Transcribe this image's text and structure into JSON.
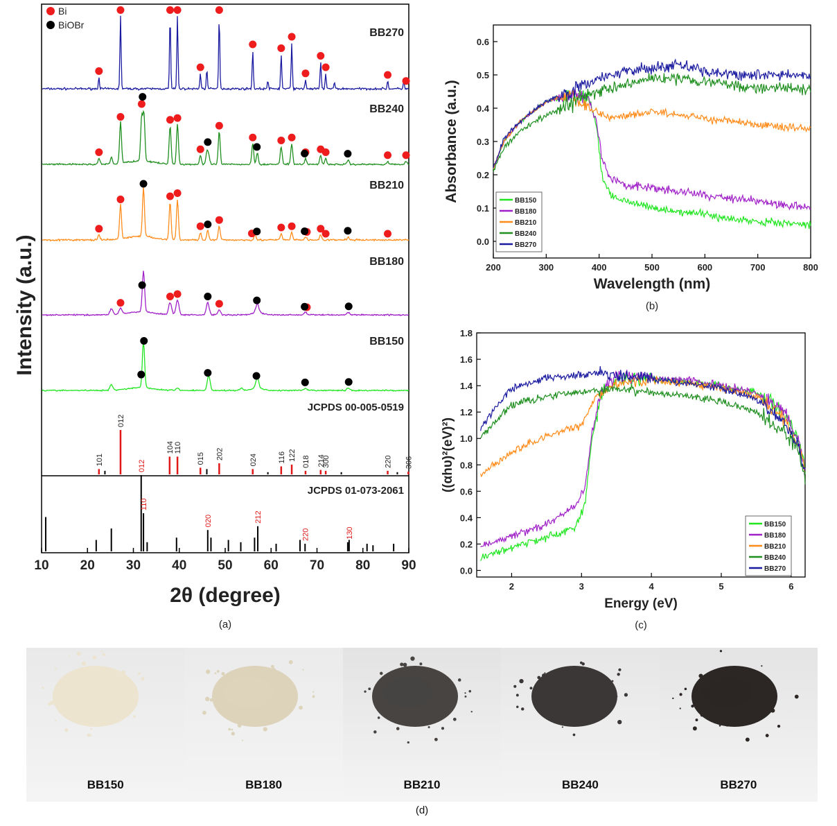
{
  "panel_letters": {
    "a": "(a)",
    "b": "(b)",
    "c": "(c)",
    "d": "(d)"
  },
  "colors": {
    "BB150": "#1fe61f",
    "BB180": "#a020c8",
    "BB210": "#ff8c1a",
    "BB240": "#1f8f1f",
    "BB270": "#1a1aa0",
    "Bi_marker": "#ee1c1c",
    "BiOBr_marker": "#000000",
    "ref_Bi": "#e01818",
    "ref_BiOBr": "#000000"
  },
  "chart_data": [
    {
      "id": "a",
      "type": "line",
      "xlabel": "2θ (degree)",
      "ylabel": "Intensity (a.u.)",
      "xlim": [
        10,
        90
      ],
      "xticks": [
        10,
        20,
        30,
        40,
        50,
        60,
        70,
        80,
        90
      ],
      "legend": [
        {
          "name": "Bi",
          "color": "#ee1c1c"
        },
        {
          "name": "BiOBr",
          "color": "#000000"
        }
      ],
      "legend_position": "top-left",
      "series": [
        {
          "name": "BB270",
          "peaks": [
            [
              22.5,
              0.15
            ],
            [
              27.2,
              0.95
            ],
            [
              38.0,
              0.95
            ],
            [
              39.6,
              0.95
            ],
            [
              44.6,
              0.2
            ],
            [
              46.0,
              0.25
            ],
            [
              48.7,
              0.95
            ],
            [
              56.0,
              0.5
            ],
            [
              59.3,
              0.1
            ],
            [
              62.2,
              0.45
            ],
            [
              64.5,
              0.6
            ],
            [
              67.5,
              0.12
            ],
            [
              70.8,
              0.35
            ],
            [
              71.9,
              0.2
            ],
            [
              73.8,
              0.08
            ],
            [
              85.4,
              0.1
            ],
            [
              88.9,
              0.1
            ]
          ],
          "Bi_markers": [
            22.5,
            27.2,
            38.0,
            39.6,
            44.6,
            48.7,
            56.0,
            62.2,
            64.5,
            67.5,
            70.8,
            71.9,
            85.4,
            89.4
          ],
          "BiOBr_markers": []
        },
        {
          "name": "BB240",
          "peaks": [
            [
              22.5,
              0.1
            ],
            [
              25.2,
              0.12
            ],
            [
              27.2,
              0.7
            ],
            [
              31.8,
              0.75
            ],
            [
              32.3,
              0.8
            ],
            [
              38.0,
              0.65
            ],
            [
              39.6,
              0.68
            ],
            [
              44.6,
              0.15
            ],
            [
              46.0,
              0.2
            ],
            [
              46.4,
              0.15
            ],
            [
              48.7,
              0.55
            ],
            [
              56.0,
              0.35
            ],
            [
              57.0,
              0.2
            ],
            [
              62.2,
              0.3
            ],
            [
              64.5,
              0.35
            ],
            [
              67.5,
              0.1
            ],
            [
              70.8,
              0.15
            ],
            [
              71.9,
              0.1
            ],
            [
              76.8,
              0.08
            ],
            [
              85.4,
              0.05
            ],
            [
              89.4,
              0.05
            ]
          ],
          "Bi_markers": [
            22.5,
            27.2,
            31.8,
            38.0,
            39.6,
            44.6,
            48.7,
            56.0,
            62.2,
            64.5,
            67.5,
            70.8,
            71.9,
            85.4,
            89.4
          ],
          "BiOBr_markers": [
            32.0,
            46.2,
            56.9,
            67.3,
            76.7
          ]
        },
        {
          "name": "BB210",
          "peaks": [
            [
              22.5,
              0.08
            ],
            [
              27.2,
              0.55
            ],
            [
              32.2,
              0.8
            ],
            [
              38.0,
              0.6
            ],
            [
              39.6,
              0.65
            ],
            [
              44.6,
              0.12
            ],
            [
              46.2,
              0.15
            ],
            [
              48.7,
              0.22
            ],
            [
              56.5,
              0.1
            ],
            [
              62.2,
              0.1
            ],
            [
              64.5,
              0.12
            ],
            [
              67.5,
              0.05
            ],
            [
              70.8,
              0.08
            ],
            [
              76.8,
              0.05
            ]
          ],
          "Bi_markers": [
            22.5,
            27.2,
            38.0,
            39.6,
            44.6,
            48.7,
            55.8,
            62.2,
            64.5,
            67.8,
            70.8,
            71.9,
            85.4
          ],
          "BiOBr_markers": [
            32.2,
            46.2,
            56.9,
            67.3,
            76.7
          ]
        },
        {
          "name": "BB180",
          "peaks": [
            [
              25.2,
              0.12
            ],
            [
              27.2,
              0.12
            ],
            [
              32.2,
              0.85
            ],
            [
              38.0,
              0.25
            ],
            [
              39.6,
              0.3
            ],
            [
              46.2,
              0.25
            ],
            [
              48.7,
              0.1
            ],
            [
              57.0,
              0.18
            ],
            [
              67.5,
              0.05
            ],
            [
              76.8,
              0.05
            ]
          ],
          "Bi_markers": [
            27.2,
            38.0,
            39.6,
            48.7,
            67.8
          ],
          "BiOBr_markers": [
            31.9,
            46.2,
            56.9,
            67.3,
            76.9
          ]
        },
        {
          "name": "BB150",
          "peaks": [
            [
              25.2,
              0.12
            ],
            [
              32.2,
              0.95
            ],
            [
              39.6,
              0.05
            ],
            [
              46.4,
              0.3
            ],
            [
              53.5,
              0.05
            ],
            [
              57.0,
              0.22
            ],
            [
              67.5,
              0.04
            ],
            [
              76.8,
              0.05
            ]
          ],
          "Bi_markers": [],
          "BiOBr_markers": [
            31.7,
            32.3,
            46.2,
            56.8,
            67.4,
            76.9
          ]
        }
      ],
      "references": [
        {
          "name": "JCPDS 00-005-0519",
          "color": "#e01818",
          "minor_color": "#000000",
          "sticks": [
            [
              22.5,
              0.12
            ],
            [
              23.8,
              0.08
            ],
            [
              27.2,
              1.0
            ],
            [
              37.9,
              0.4
            ],
            [
              39.6,
              0.4
            ],
            [
              44.6,
              0.15
            ],
            [
              46.0,
              0.12
            ],
            [
              48.7,
              0.25
            ],
            [
              56.0,
              0.12
            ],
            [
              59.3,
              0.05
            ],
            [
              62.2,
              0.18
            ],
            [
              64.5,
              0.22
            ],
            [
              67.5,
              0.08
            ],
            [
              70.8,
              0.1
            ],
            [
              71.9,
              0.08
            ],
            [
              75.3,
              0.05
            ],
            [
              85.4,
              0.08
            ],
            [
              87.5,
              0.05
            ],
            [
              89.9,
              0.06
            ]
          ],
          "labels": [
            [
              "101",
              22.5
            ],
            [
              "012",
              27.2
            ],
            [
              "104",
              37.9
            ],
            [
              "110",
              39.6
            ],
            [
              "015",
              44.6
            ],
            [
              "202",
              48.7
            ],
            [
              "024",
              56.0
            ],
            [
              "116",
              62.2
            ],
            [
              "122",
              64.5
            ],
            [
              "018",
              67.5
            ],
            [
              "214",
              70.8
            ],
            [
              "300",
              71.9
            ],
            [
              "220",
              85.4
            ],
            [
              "306",
              89.9
            ]
          ]
        },
        {
          "name": "JCPDS 01-073-2061",
          "color": "#000000",
          "sticks": [
            [
              10.9,
              0.45
            ],
            [
              21.9,
              0.15
            ],
            [
              25.2,
              0.3
            ],
            [
              31.7,
              1.0
            ],
            [
              32.2,
              0.5
            ],
            [
              33.0,
              0.12
            ],
            [
              39.4,
              0.18
            ],
            [
              46.2,
              0.28
            ],
            [
              46.9,
              0.18
            ],
            [
              50.7,
              0.15
            ],
            [
              53.4,
              0.12
            ],
            [
              56.4,
              0.18
            ],
            [
              57.1,
              0.33
            ],
            [
              61.1,
              0.1
            ],
            [
              66.3,
              0.15
            ],
            [
              67.4,
              0.1
            ],
            [
              76.7,
              0.12
            ],
            [
              77.0,
              0.15
            ],
            [
              80.9,
              0.1
            ],
            [
              82.2,
              0.08
            ],
            [
              86.7,
              0.1
            ]
          ],
          "labels": [
            [
              "012",
              31.7
            ],
            [
              "110",
              32.2
            ],
            [
              "020",
              46.2
            ],
            [
              "212",
              57.1
            ],
            [
              "220",
              67.4
            ],
            [
              "130",
              77.0
            ]
          ]
        }
      ]
    },
    {
      "id": "b",
      "type": "line",
      "xlabel": "Wavelength (nm)",
      "ylabel": "Absorbance (a.u.)",
      "xlim": [
        200,
        800
      ],
      "ylim": [
        -0.05,
        0.65
      ],
      "xticks": [
        200,
        300,
        400,
        500,
        600,
        700,
        800
      ],
      "yticks": [
        0.0,
        0.1,
        0.2,
        0.3,
        0.4,
        0.5,
        0.6
      ],
      "legend_position": "bottom-left",
      "series": [
        {
          "name": "BB150",
          "x": [
            200,
            220,
            250,
            300,
            350,
            380,
            395,
            405,
            420,
            450,
            500,
            550,
            600,
            650,
            700,
            750,
            800
          ],
          "y": [
            0.22,
            0.3,
            0.36,
            0.42,
            0.44,
            0.43,
            0.35,
            0.2,
            0.14,
            0.12,
            0.1,
            0.09,
            0.08,
            0.07,
            0.06,
            0.055,
            0.05
          ]
        },
        {
          "name": "BB180",
          "x": [
            200,
            220,
            250,
            300,
            350,
            380,
            395,
            405,
            420,
            450,
            500,
            550,
            600,
            650,
            700,
            750,
            800
          ],
          "y": [
            0.22,
            0.3,
            0.36,
            0.42,
            0.44,
            0.43,
            0.36,
            0.25,
            0.19,
            0.17,
            0.16,
            0.15,
            0.14,
            0.13,
            0.12,
            0.11,
            0.1
          ]
        },
        {
          "name": "BB210",
          "x": [
            200,
            220,
            250,
            300,
            350,
            380,
            420,
            450,
            500,
            550,
            600,
            650,
            700,
            750,
            800
          ],
          "y": [
            0.22,
            0.3,
            0.36,
            0.42,
            0.44,
            0.4,
            0.37,
            0.38,
            0.39,
            0.38,
            0.37,
            0.36,
            0.35,
            0.34,
            0.34
          ]
        },
        {
          "name": "BB240",
          "x": [
            200,
            220,
            250,
            300,
            350,
            400,
            450,
            500,
            550,
            600,
            650,
            700,
            750,
            800
          ],
          "y": [
            0.21,
            0.28,
            0.33,
            0.38,
            0.42,
            0.45,
            0.47,
            0.49,
            0.49,
            0.48,
            0.47,
            0.46,
            0.46,
            0.46
          ]
        },
        {
          "name": "BB270",
          "x": [
            200,
            220,
            250,
            300,
            350,
            400,
            450,
            500,
            550,
            600,
            650,
            700,
            750,
            800
          ],
          "y": [
            0.22,
            0.31,
            0.36,
            0.42,
            0.45,
            0.49,
            0.51,
            0.52,
            0.53,
            0.51,
            0.5,
            0.5,
            0.5,
            0.5
          ]
        }
      ]
    },
    {
      "id": "c",
      "type": "line",
      "xlabel": "Energy (eV)",
      "ylabel": "((αhυ)²(eV)²)",
      "xlim": [
        1.5,
        6.2
      ],
      "ylim": [
        -0.05,
        1.8
      ],
      "xticks": [
        2,
        3,
        4,
        5,
        6
      ],
      "yticks": [
        0.0,
        0.2,
        0.4,
        0.6,
        0.8,
        1.0,
        1.2,
        1.4,
        1.6,
        1.8
      ],
      "legend_position": "bottom-right",
      "series": [
        {
          "name": "BB150",
          "x": [
            1.55,
            2.0,
            2.5,
            2.9,
            3.05,
            3.15,
            3.3,
            3.5,
            4.0,
            4.5,
            5.0,
            5.5,
            5.9,
            6.1,
            6.2
          ],
          "y": [
            0.1,
            0.17,
            0.25,
            0.32,
            0.5,
            1.0,
            1.35,
            1.45,
            1.45,
            1.43,
            1.4,
            1.35,
            1.2,
            1.0,
            0.75
          ]
        },
        {
          "name": "BB180",
          "x": [
            1.55,
            2.0,
            2.5,
            2.9,
            3.05,
            3.15,
            3.3,
            3.5,
            4.0,
            4.5,
            5.0,
            5.5,
            5.9,
            6.1,
            6.2
          ],
          "y": [
            0.18,
            0.26,
            0.35,
            0.48,
            0.62,
            1.05,
            1.37,
            1.46,
            1.46,
            1.44,
            1.4,
            1.35,
            1.2,
            1.0,
            0.75
          ]
        },
        {
          "name": "BB210",
          "x": [
            1.55,
            1.8,
            2.0,
            2.5,
            3.0,
            3.2,
            3.5,
            4.0,
            4.5,
            5.0,
            5.5,
            5.9,
            6.1,
            6.2
          ],
          "y": [
            0.72,
            0.82,
            0.9,
            1.02,
            1.1,
            1.3,
            1.42,
            1.44,
            1.42,
            1.38,
            1.32,
            1.15,
            0.95,
            0.75
          ]
        },
        {
          "name": "BB240",
          "x": [
            1.55,
            1.8,
            2.0,
            2.5,
            3.0,
            3.5,
            4.0,
            4.5,
            5.0,
            5.5,
            5.9,
            6.1,
            6.2
          ],
          "y": [
            1.0,
            1.15,
            1.25,
            1.32,
            1.35,
            1.38,
            1.35,
            1.32,
            1.28,
            1.2,
            1.05,
            0.9,
            0.7
          ]
        },
        {
          "name": "BB270",
          "x": [
            1.55,
            1.8,
            2.0,
            2.5,
            3.0,
            3.3,
            3.5,
            4.0,
            4.5,
            5.0,
            5.5,
            5.9,
            6.1,
            6.2
          ],
          "y": [
            1.08,
            1.25,
            1.38,
            1.46,
            1.48,
            1.5,
            1.47,
            1.45,
            1.42,
            1.38,
            1.3,
            1.12,
            0.95,
            0.72
          ]
        }
      ]
    }
  ],
  "panel_d": {
    "samples": [
      {
        "label": "BB150",
        "powder_color": "#ece4cf",
        "bg": "#e9e9e9"
      },
      {
        "label": "BB180",
        "powder_color": "#ddd3bb",
        "bg": "#ebebeb"
      },
      {
        "label": "BB210",
        "powder_color": "#474442",
        "bg": "#e3e3e3"
      },
      {
        "label": "BB240",
        "powder_color": "#3b3736",
        "bg": "#e6e6e6"
      },
      {
        "label": "BB270",
        "powder_color": "#2c2625",
        "bg": "#e4e4e4"
      }
    ]
  }
}
